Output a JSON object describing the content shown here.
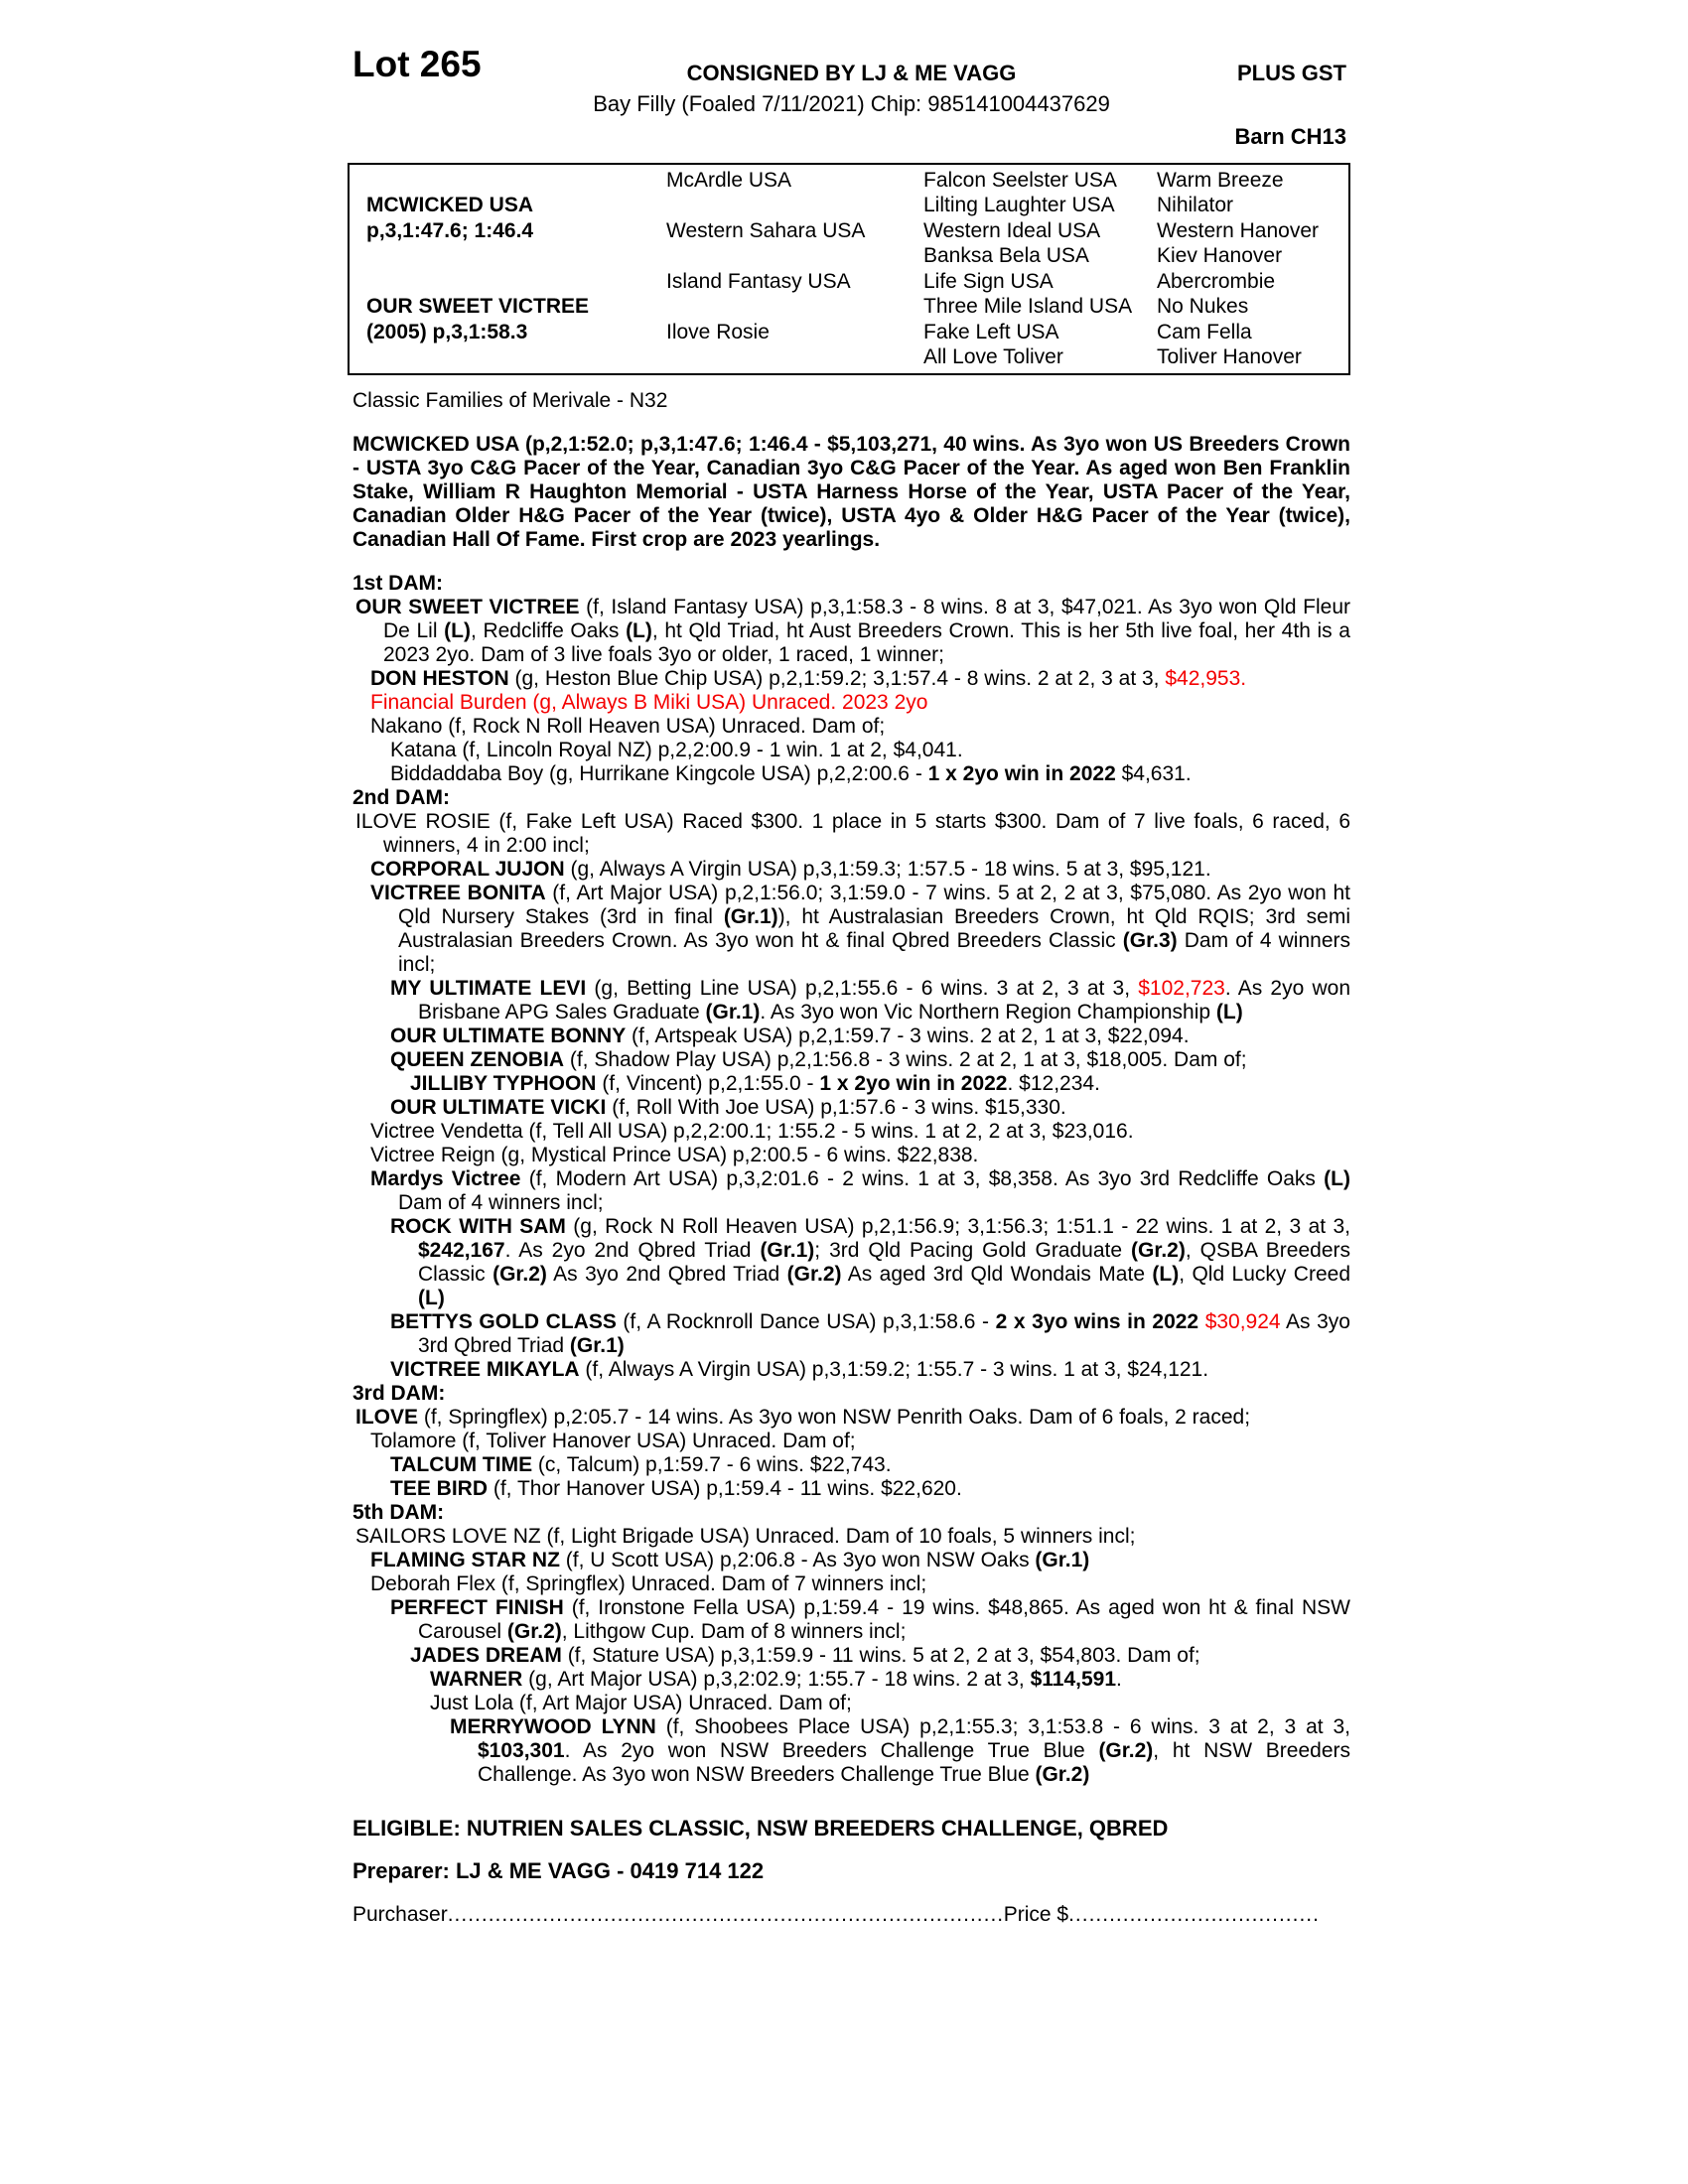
{
  "header": {
    "lot": "Lot 265",
    "consigned": "CONSIGNED BY LJ & ME VAGG",
    "plus_gst": "PLUS GST",
    "description": "Bay Filly (Foaled 7/11/2021) Chip: 985141004437629",
    "barn": "Barn CH13"
  },
  "pedigree_table": {
    "sire_name": "MCWICKED USA",
    "sire_record": "p,3,1:47.6; 1:46.4",
    "dam_name": "OUR SWEET VICTREE",
    "dam_record": "(2005) p,3,1:58.3",
    "gen2": [
      "McArdle USA",
      "Western Sahara USA",
      "Island Fantasy USA",
      "Ilove Rosie"
    ],
    "gen3": [
      "Falcon Seelster USA",
      "Lilting Laughter USA",
      "Western Ideal USA",
      "Banksa Bela USA",
      "Life Sign USA",
      "Three Mile Island USA",
      "Fake Left USA",
      "All Love Toliver"
    ],
    "gen4": [
      "Warm Breeze",
      "Nihilator",
      "Western Hanover",
      "Kiev Hanover",
      "Abercrombie",
      "No Nukes",
      "Cam Fella",
      "Toliver Hanover"
    ]
  },
  "family_line": "Classic Families of Merivale - N32",
  "sire_block": [
    {
      "ml": 0,
      "ti": 0,
      "dn": "sire-summary",
      "runs": [
        {
          "t": "MCWICKED USA (p,2,1:52.0; p,3,1:47.6; 1:46.4 - $5,103,271, 40 wins. As 3yo won US Breeders Crown - USTA 3yo C&G Pacer of the Year, Canadian 3yo C&G Pacer of the Year. As aged won Ben Franklin Stake, William R Haughton Memorial - USTA Harness Horse of the Year, USTA Pacer of the Year, Canadian Older H&G Pacer of the Year (twice), USTA 4yo & Older H&G Pacer of the Year (twice), Canadian Hall Of Fame. First crop are 2023 yearlings.",
          "b": true
        }
      ]
    }
  ],
  "body": [
    {
      "ml": 0,
      "ti": 0,
      "dn": "section-1st-dam",
      "runs": [
        {
          "t": "1st DAM:",
          "b": true
        }
      ]
    },
    {
      "ml": 31,
      "ti": -28,
      "runs": [
        {
          "t": "OUR SWEET VICTREE",
          "b": true
        },
        {
          "t": " (f, Island Fantasy USA) p,3,1:58.3 - 8 wins. 8 at 3, $47,021. As 3yo won Qld Fleur De Lil "
        },
        {
          "t": "(L)",
          "b": true
        },
        {
          "t": ", Redcliffe Oaks "
        },
        {
          "t": "(L)",
          "b": true
        },
        {
          "t": ", ht Qld Triad, ht Aust Breeders Crown. This is her 5th live foal, her 4th is a 2023 2yo. Dam of 3 live foals 3yo or older, 1 raced, 1 winner;"
        }
      ]
    },
    {
      "ml": 46,
      "ti": -28,
      "runs": [
        {
          "t": "DON HESTON",
          "b": true
        },
        {
          "t": " (g, Heston Blue Chip USA) p,2,1:59.2; 3,1:57.4 - 8 wins. 2 at 2, 3 at 3, "
        },
        {
          "t": "$42,953.",
          "r": true
        }
      ]
    },
    {
      "ml": 46,
      "ti": -28,
      "runs": [
        {
          "t": "Financial Burden (g, Always B Miki USA) Unraced. 2023 2yo",
          "r": true
        }
      ]
    },
    {
      "ml": 46,
      "ti": -28,
      "runs": [
        {
          "t": "Nakano (f, Rock N Roll Heaven USA) Unraced. Dam of;"
        }
      ]
    },
    {
      "ml": 66,
      "ti": -28,
      "runs": [
        {
          "t": "Katana (f, Lincoln Royal NZ) p,2,2:00.9 - 1 win. 1 at 2, $4,041."
        }
      ]
    },
    {
      "ml": 66,
      "ti": -28,
      "runs": [
        {
          "t": "Biddaddaba Boy (g, Hurrikane Kingcole USA) p,2,2:00.6 - "
        },
        {
          "t": "1 x 2yo win in 2022",
          "b": true
        },
        {
          "t": " $4,631."
        }
      ]
    },
    {
      "ml": 0,
      "ti": 0,
      "dn": "section-2nd-dam",
      "runs": [
        {
          "t": "2nd DAM:",
          "b": true
        }
      ]
    },
    {
      "ml": 31,
      "ti": -28,
      "runs": [
        {
          "t": "ILOVE ROSIE (f, Fake Left USA) Raced $300. 1 place in 5 starts $300. Dam of 7 live foals, 6 raced, 6 winners, 4 in 2:00 incl;"
        }
      ]
    },
    {
      "ml": 46,
      "ti": -28,
      "runs": [
        {
          "t": "CORPORAL JUJON",
          "b": true
        },
        {
          "t": " (g, Always A Virgin USA) p,3,1:59.3; 1:57.5 - 18 wins. 5 at 3, $95,121."
        }
      ]
    },
    {
      "ml": 46,
      "ti": -28,
      "runs": [
        {
          "t": "VICTREE BONITA",
          "b": true
        },
        {
          "t": " (f, Art Major USA) p,2,1:56.0; 3,1:59.0 - 7 wins. 5 at 2, 2 at 3, $75,080. As 2yo won ht Qld Nursery Stakes (3rd in final "
        },
        {
          "t": "(Gr.1)",
          "b": true
        },
        {
          "t": "), ht Australasian Breeders Crown, ht Qld RQIS; 3rd semi Australasian Breeders Crown. As 3yo won ht & final Qbred Breeders Classic "
        },
        {
          "t": "(Gr.3)",
          "b": true
        },
        {
          "t": " Dam of 4 winners incl;"
        }
      ]
    },
    {
      "ml": 66,
      "ti": -28,
      "runs": [
        {
          "t": "MY ULTIMATE LEVI",
          "b": true
        },
        {
          "t": " (g, Betting Line USA) p,2,1:55.6 - 6 wins. 3 at 2, 3 at 3, "
        },
        {
          "t": "$102,723",
          "r": true
        },
        {
          "t": ". As 2yo won Brisbane APG Sales Graduate "
        },
        {
          "t": "(Gr.1)",
          "b": true
        },
        {
          "t": ". As 3yo won Vic Northern Region Championship "
        },
        {
          "t": "(L)",
          "b": true
        }
      ]
    },
    {
      "ml": 66,
      "ti": -28,
      "runs": [
        {
          "t": "OUR ULTIMATE BONNY",
          "b": true
        },
        {
          "t": " (f, Artspeak USA) p,2,1:59.7 - 3 wins. 2 at 2, 1 at 3, $22,094."
        }
      ]
    },
    {
      "ml": 66,
      "ti": -28,
      "runs": [
        {
          "t": "QUEEN ZENOBIA",
          "b": true
        },
        {
          "t": " (f, Shadow Play USA) p,2,1:56.8 - 3 wins. 2 at 2, 1 at 3, $18,005. Dam of;"
        }
      ]
    },
    {
      "ml": 86,
      "ti": -28,
      "runs": [
        {
          "t": "JILLIBY TYPHOON",
          "b": true
        },
        {
          "t": " (f, Vincent) p,2,1:55.0 - "
        },
        {
          "t": "1 x 2yo win in 2022",
          "b": true
        },
        {
          "t": ". $12,234."
        }
      ]
    },
    {
      "ml": 66,
      "ti": -28,
      "runs": [
        {
          "t": "OUR ULTIMATE VICKI",
          "b": true
        },
        {
          "t": " (f, Roll With Joe USA) p,1:57.6 - 3 wins. $15,330."
        }
      ]
    },
    {
      "ml": 46,
      "ti": -28,
      "runs": [
        {
          "t": "Victree Vendetta (f, Tell All USA) p,2,2:00.1; 1:55.2 - 5 wins. 1 at 2, 2 at 3, $23,016."
        }
      ]
    },
    {
      "ml": 46,
      "ti": -28,
      "runs": [
        {
          "t": "Victree Reign (g, Mystical Prince USA) p,2:00.5 - 6 wins. $22,838."
        }
      ]
    },
    {
      "ml": 46,
      "ti": -28,
      "runs": [
        {
          "t": "Mardys Victree",
          "b": true
        },
        {
          "t": " (f, Modern Art USA) p,3,2:01.6 - 2 wins. 1 at 3, $8,358. As 3yo 3rd Redcliffe Oaks "
        },
        {
          "t": "(L)",
          "b": true
        },
        {
          "t": " Dam of 4 winners incl;"
        }
      ]
    },
    {
      "ml": 66,
      "ti": -28,
      "runs": [
        {
          "t": "ROCK WITH SAM",
          "b": true
        },
        {
          "t": " (g, Rock N Roll Heaven USA) p,2,1:56.9; 3,1:56.3; 1:51.1 - 22 wins. 1 at 2, 3 at 3, "
        },
        {
          "t": "$242,167",
          "b": true
        },
        {
          "t": ". As 2yo 2nd Qbred Triad "
        },
        {
          "t": "(Gr.1)",
          "b": true
        },
        {
          "t": "; 3rd Qld Pacing Gold Graduate "
        },
        {
          "t": "(Gr.2)",
          "b": true
        },
        {
          "t": ", QSBA Breeders Classic "
        },
        {
          "t": "(Gr.2)",
          "b": true
        },
        {
          "t": " As 3yo 2nd Qbred Triad "
        },
        {
          "t": "(Gr.2)",
          "b": true
        },
        {
          "t": " As aged 3rd Qld Wondais Mate "
        },
        {
          "t": "(L)",
          "b": true
        },
        {
          "t": ", Qld Lucky Creed "
        },
        {
          "t": "(L)",
          "b": true
        }
      ]
    },
    {
      "ml": 66,
      "ti": -28,
      "runs": [
        {
          "t": "BETTYS GOLD CLASS",
          "b": true
        },
        {
          "t": " (f, A Rocknroll Dance USA) p,3,1:58.6 - "
        },
        {
          "t": "2 x 3yo wins in 2022",
          "b": true
        },
        {
          "t": " "
        },
        {
          "t": "$30,924",
          "r": true
        },
        {
          "t": " As 3yo 3rd Qbred Triad "
        },
        {
          "t": "(Gr.1)",
          "b": true
        }
      ]
    },
    {
      "ml": 66,
      "ti": -28,
      "runs": [
        {
          "t": "VICTREE MIKAYLA",
          "b": true
        },
        {
          "t": " (f, Always A Virgin USA) p,3,1:59.2; 1:55.7 - 3 wins. 1 at 3, $24,121."
        }
      ]
    },
    {
      "ml": 0,
      "ti": 0,
      "dn": "section-3rd-dam",
      "runs": [
        {
          "t": "3rd DAM:",
          "b": true
        }
      ]
    },
    {
      "ml": 31,
      "ti": -28,
      "runs": [
        {
          "t": "ILOVE",
          "b": true
        },
        {
          "t": " (f, Springflex) p,2:05.7 - 14 wins. As 3yo won NSW Penrith Oaks. Dam of 6 foals, 2 raced;"
        }
      ]
    },
    {
      "ml": 46,
      "ti": -28,
      "runs": [
        {
          "t": "Tolamore (f, Toliver Hanover USA) Unraced. Dam of;"
        }
      ]
    },
    {
      "ml": 66,
      "ti": -28,
      "runs": [
        {
          "t": "TALCUM TIME",
          "b": true
        },
        {
          "t": " (c, Talcum) p,1:59.7 - 6 wins. $22,743."
        }
      ]
    },
    {
      "ml": 66,
      "ti": -28,
      "runs": [
        {
          "t": "TEE BIRD",
          "b": true
        },
        {
          "t": " (f, Thor Hanover USA) p,1:59.4 - 11 wins. $22,620."
        }
      ]
    },
    {
      "ml": 0,
      "ti": 0,
      "dn": "section-5th-dam",
      "runs": [
        {
          "t": "5th DAM:",
          "b": true
        }
      ]
    },
    {
      "ml": 31,
      "ti": -28,
      "runs": [
        {
          "t": "SAILORS LOVE NZ (f, Light Brigade USA) Unraced. Dam of 10 foals, 5 winners incl;"
        }
      ]
    },
    {
      "ml": 46,
      "ti": -28,
      "runs": [
        {
          "t": "FLAMING STAR NZ",
          "b": true
        },
        {
          "t": " (f, U Scott USA) p,2:06.8 - As 3yo won NSW Oaks "
        },
        {
          "t": "(Gr.1)",
          "b": true
        }
      ]
    },
    {
      "ml": 46,
      "ti": -28,
      "runs": [
        {
          "t": "Deborah Flex (f, Springflex) Unraced. Dam of 7 winners incl;"
        }
      ]
    },
    {
      "ml": 66,
      "ti": -28,
      "runs": [
        {
          "t": "PERFECT FINISH",
          "b": true
        },
        {
          "t": " (f, Ironstone Fella USA) p,1:59.4 - 19 wins. $48,865. As aged won ht & final NSW Carousel "
        },
        {
          "t": "(Gr.2)",
          "b": true
        },
        {
          "t": ", Lithgow Cup. Dam of 8 winners incl;"
        }
      ]
    },
    {
      "ml": 86,
      "ti": -28,
      "runs": [
        {
          "t": "JADES DREAM",
          "b": true
        },
        {
          "t": " (f, Stature USA) p,3,1:59.9 - 11 wins. 5 at 2, 2 at 3, $54,803. Dam of;"
        }
      ]
    },
    {
      "ml": 106,
      "ti": -28,
      "runs": [
        {
          "t": "WARNER",
          "b": true
        },
        {
          "t": " (g, Art Major USA) p,3,2:02.9; 1:55.7 - 18 wins. 2 at 3, "
        },
        {
          "t": "$114,591",
          "b": true
        },
        {
          "t": "."
        }
      ]
    },
    {
      "ml": 106,
      "ti": -28,
      "runs": [
        {
          "t": "Just Lola (f, Art Major USA) Unraced. Dam of;"
        }
      ]
    },
    {
      "ml": 126,
      "ti": -28,
      "runs": [
        {
          "t": "MERRYWOOD LYNN",
          "b": true
        },
        {
          "t": " (f, Shoobees Place USA) p,2,1:55.3; 3,1:53.8 - 6 wins. 3 at 2, 3 at 3, "
        },
        {
          "t": "$103,301",
          "b": true
        },
        {
          "t": ". As 2yo won NSW Breeders Challenge True Blue "
        },
        {
          "t": "(Gr.2)",
          "b": true
        },
        {
          "t": ", ht NSW Breeders Challenge. As 3yo won NSW Breeders Challenge True Blue "
        },
        {
          "t": "(Gr.2)",
          "b": true
        }
      ]
    }
  ],
  "footer": {
    "eligible": "ELIGIBLE: NUTRIEN SALES CLASSIC, NSW BREEDERS CHALLENGE, QBRED",
    "preparer": "Preparer: LJ & ME VAGG - 0419 714 122",
    "purchaser_label": "Purchaser",
    "price_label": "Price $",
    "leader_dots": "......................................................................................................................................................"
  },
  "colors": {
    "red": "#f40000",
    "text": "#000000",
    "background": "#ffffff"
  }
}
